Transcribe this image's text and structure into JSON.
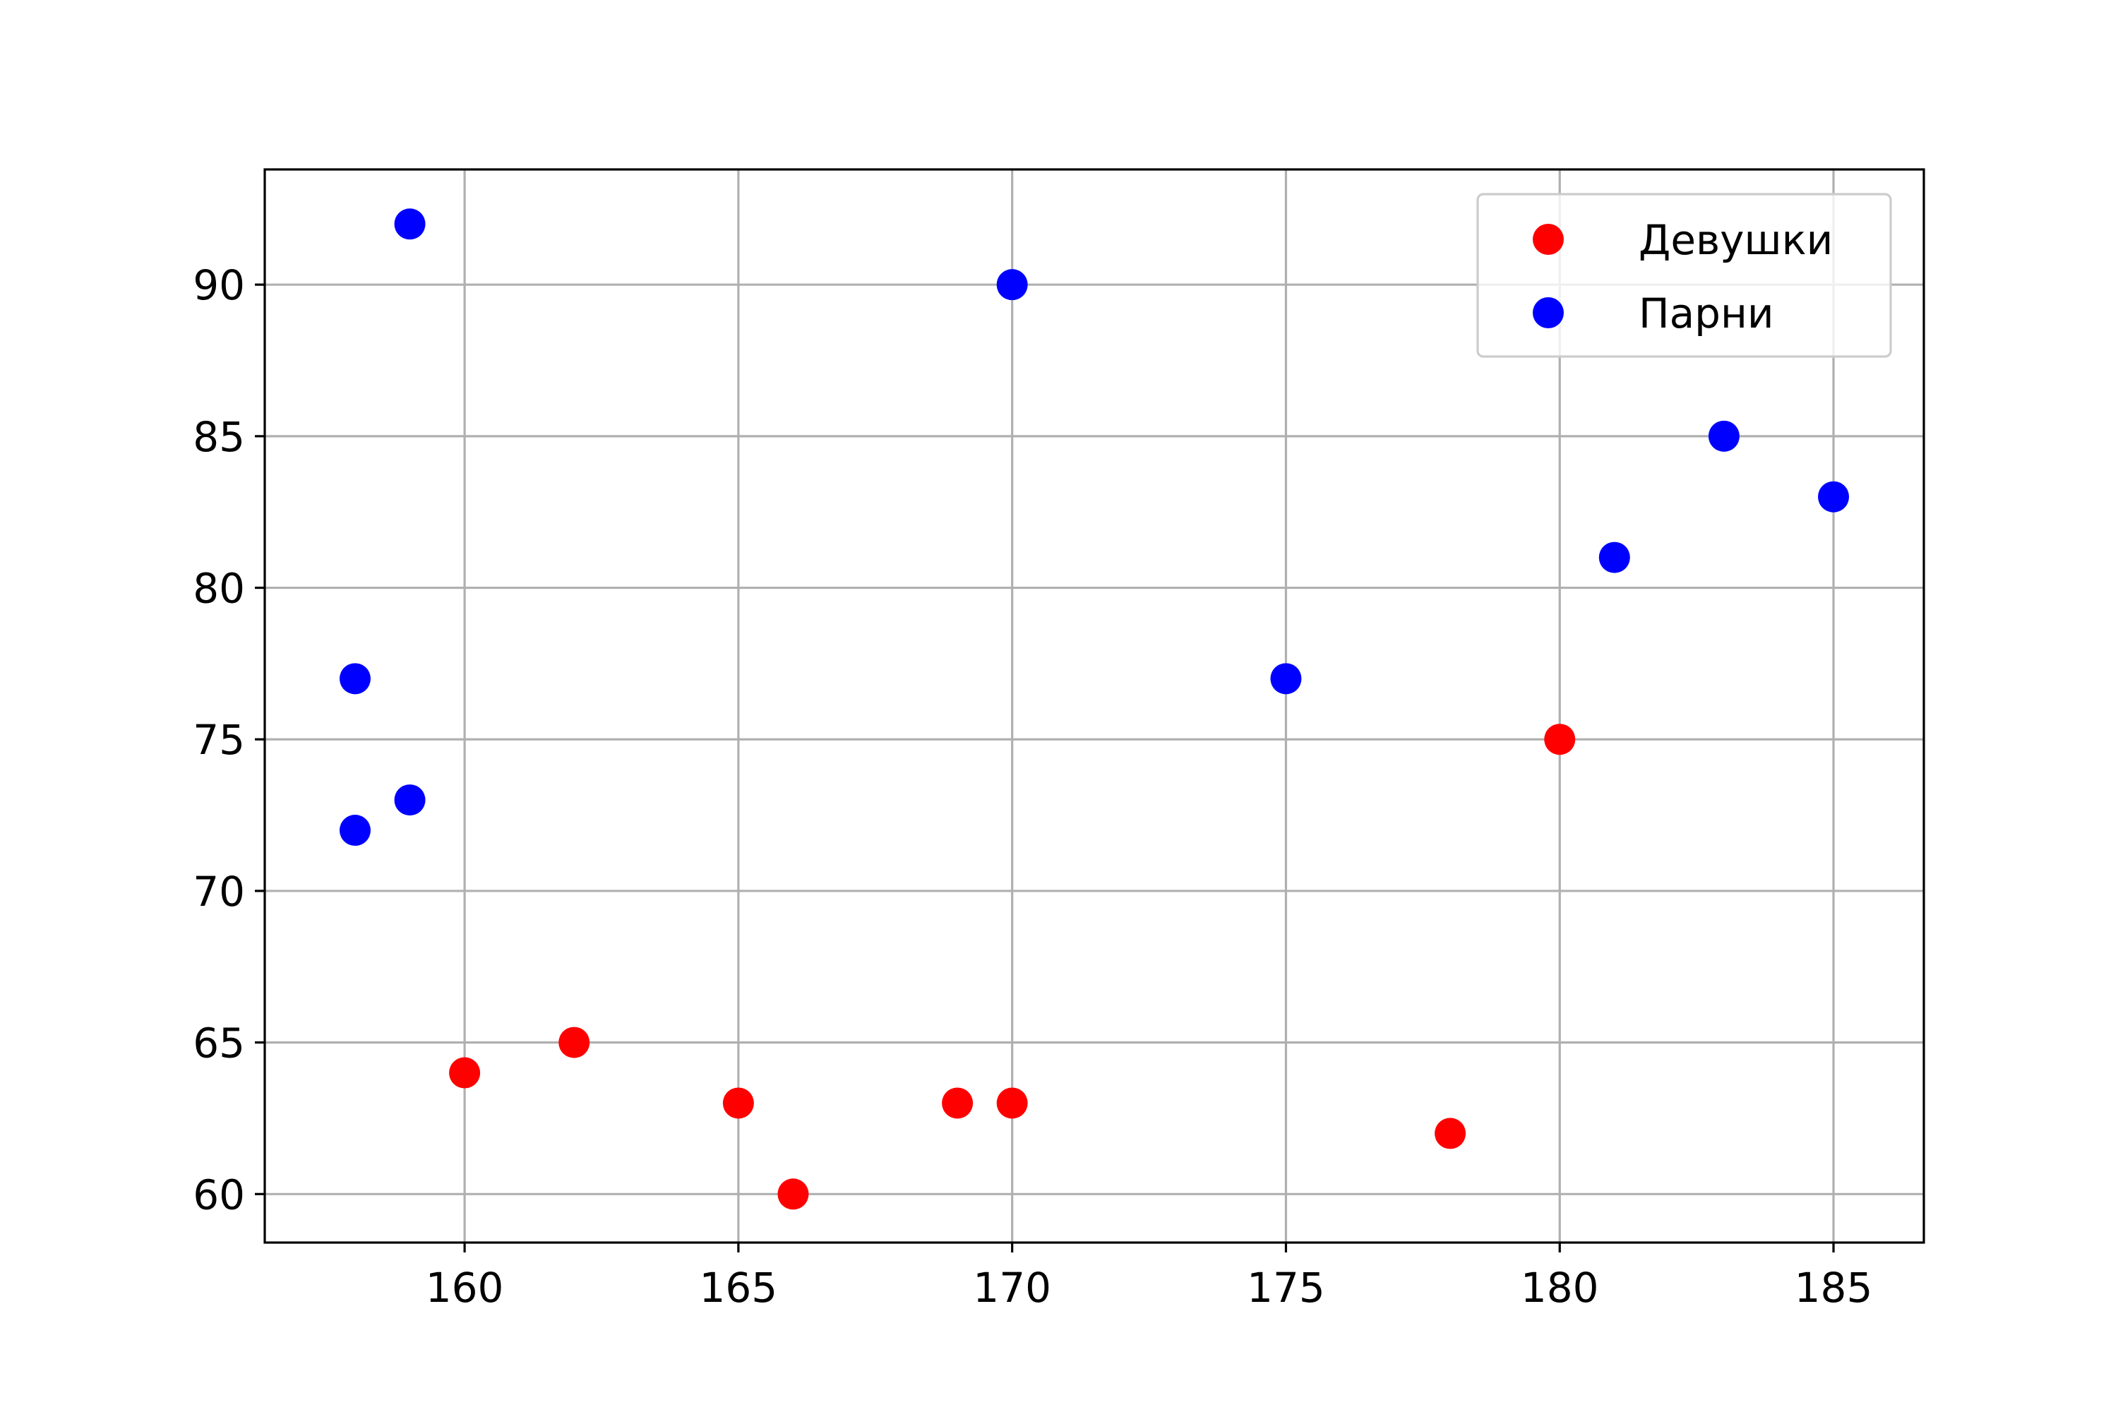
{
  "chart_data": {
    "type": "scatter",
    "title": "",
    "xlabel": "",
    "ylabel": "",
    "xlim": [
      156.35,
      186.65
    ],
    "ylim": [
      58.4,
      93.8
    ],
    "x_ticks": [
      "160",
      "165",
      "170",
      "175",
      "180",
      "185"
    ],
    "y_ticks": [
      "60",
      "65",
      "70",
      "75",
      "80",
      "85",
      "90"
    ],
    "x_tick_values": [
      160,
      165,
      170,
      175,
      180,
      185
    ],
    "y_tick_values": [
      60,
      65,
      70,
      75,
      80,
      85,
      90
    ],
    "grid": true,
    "legend_position": "top-right",
    "series": [
      {
        "name": "Девушки",
        "color": "#ff0000",
        "points": [
          {
            "x": 160,
            "y": 64
          },
          {
            "x": 162,
            "y": 65
          },
          {
            "x": 165,
            "y": 63
          },
          {
            "x": 166,
            "y": 60
          },
          {
            "x": 169,
            "y": 63
          },
          {
            "x": 170,
            "y": 63
          },
          {
            "x": 178,
            "y": 62
          },
          {
            "x": 180,
            "y": 75
          }
        ]
      },
      {
        "name": "Парни",
        "color": "#0000ff",
        "points": [
          {
            "x": 158,
            "y": 77
          },
          {
            "x": 158,
            "y": 72
          },
          {
            "x": 159,
            "y": 92
          },
          {
            "x": 159,
            "y": 73
          },
          {
            "x": 170,
            "y": 90
          },
          {
            "x": 175,
            "y": 77
          },
          {
            "x": 181,
            "y": 81
          },
          {
            "x": 183,
            "y": 85
          },
          {
            "x": 185,
            "y": 83
          }
        ]
      }
    ]
  }
}
